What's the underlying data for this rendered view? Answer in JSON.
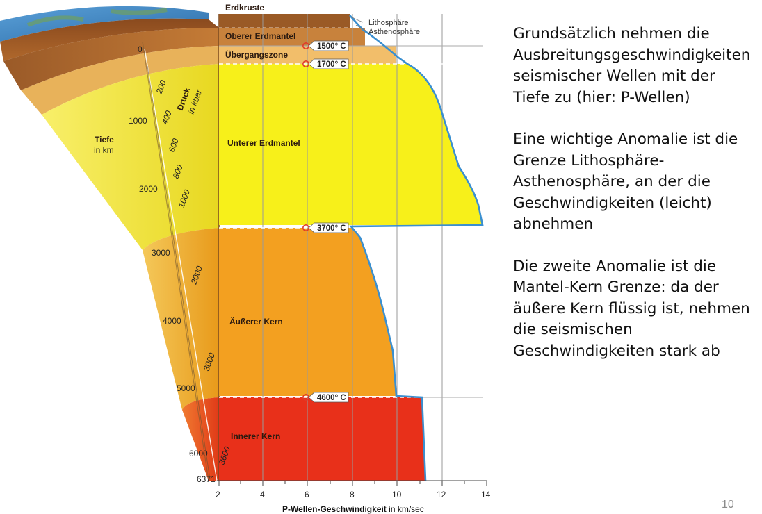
{
  "diagram": {
    "layers": {
      "erdkruste": "Erdkruste",
      "oberer_erdmantel": "Oberer Erdmantel",
      "uebergangszone": "Übergangszone",
      "unterer_erdmantel": "Unterer Erdmantel",
      "aeusserer_kern": "Äußerer Kern",
      "innerer_kern": "Innerer Kern"
    },
    "annotations": {
      "lithosphaere": "Lithosphäre",
      "asthenosphaere": "Asthenosphäre"
    },
    "temperatures": [
      "1500° C",
      "1700° C",
      "3700° C",
      "4600° C"
    ],
    "depth": {
      "label": "Tiefe",
      "unit": "in km",
      "ticks": [
        "0",
        "1000",
        "2000",
        "3000",
        "4000",
        "5000",
        "6000",
        "6371"
      ]
    },
    "pressure": {
      "label": "Druck",
      "unit": "in kbar",
      "ticks": [
        "200",
        "400",
        "600",
        "800",
        "1000",
        "2000",
        "3000",
        "3600"
      ]
    },
    "velocity_axis": {
      "label": "P-Wellen-Geschwindigkeit",
      "unit": " in km/sec",
      "ticks": [
        "2",
        "4",
        "6",
        "8",
        "10",
        "12",
        "14"
      ]
    },
    "colors": {
      "crust": "#a0602a",
      "upper_mantle": "#c8823c",
      "transition_zone": "#f2be6a",
      "lower_mantle": "#f7f01a",
      "outer_core": "#f3a020",
      "inner_core": "#e8301a",
      "velocity_curve": "#3a8fd0"
    }
  },
  "text": {
    "paragraph_1": "Grundsätzlich nehmen die Ausbreitungsgeschwindigkeiten seismischer Wellen mit der Tiefe zu (hier: P-Wellen)",
    "paragraph_2": "Eine wichtige Anomalie ist die Grenze Lithosphäre-Asthenosphäre, an der die Geschwindigkeiten (leicht) abnehmen",
    "paragraph_3": "Die zweite Anomalie ist die Mantel-Kern Grenze: da der äußere Kern flüssig ist, nehmen die seismischen Geschwindigkeiten stark ab"
  },
  "slide_number": "10"
}
